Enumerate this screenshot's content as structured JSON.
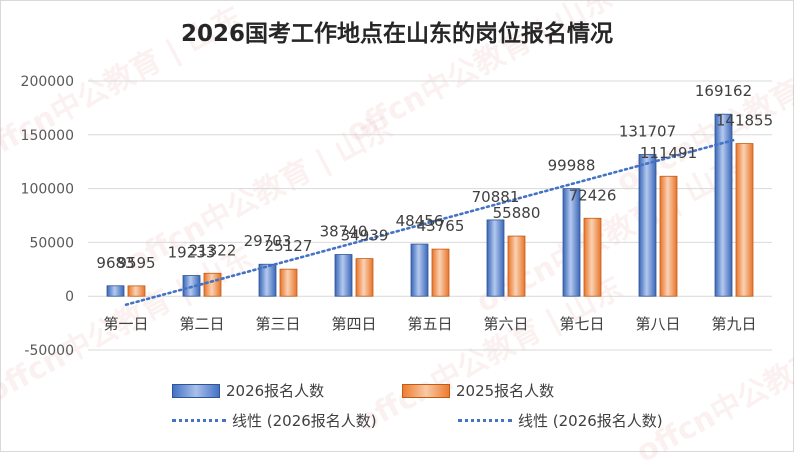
{
  "chart_data": {
    "type": "bar",
    "title": "2026国考工作地点在山东的岗位报名情况",
    "xlabel": "",
    "ylabel": "",
    "categories": [
      "第一日",
      "第二日",
      "第三日",
      "第四日",
      "第五日",
      "第六日",
      "第七日",
      "第八日",
      "第九日"
    ],
    "series": [
      {
        "name": "2026报名人数",
        "values": [
          9683,
          19233,
          29703,
          38740,
          48456,
          70881,
          99988,
          131707,
          169162
        ],
        "color": "#4472c4"
      },
      {
        "name": "2025报名人数",
        "values": [
          9595,
          21322,
          25127,
          34939,
          43765,
          55880,
          72426,
          111491,
          141855
        ],
        "color": "#ed7d31"
      }
    ],
    "trendlines": [
      {
        "name": "线性 (2026报名人数)",
        "color": "#4472c4",
        "style": "dotted"
      },
      {
        "name": "线性 (2026报名人数)",
        "color": "#4472c4",
        "style": "dotted"
      }
    ],
    "ylim": [
      -50000,
      200000
    ],
    "yticks": [
      -50000,
      0,
      50000,
      100000,
      150000,
      200000
    ],
    "grid": true,
    "legend": "bottom"
  },
  "watermark": "offcn中公教育 | 山东"
}
